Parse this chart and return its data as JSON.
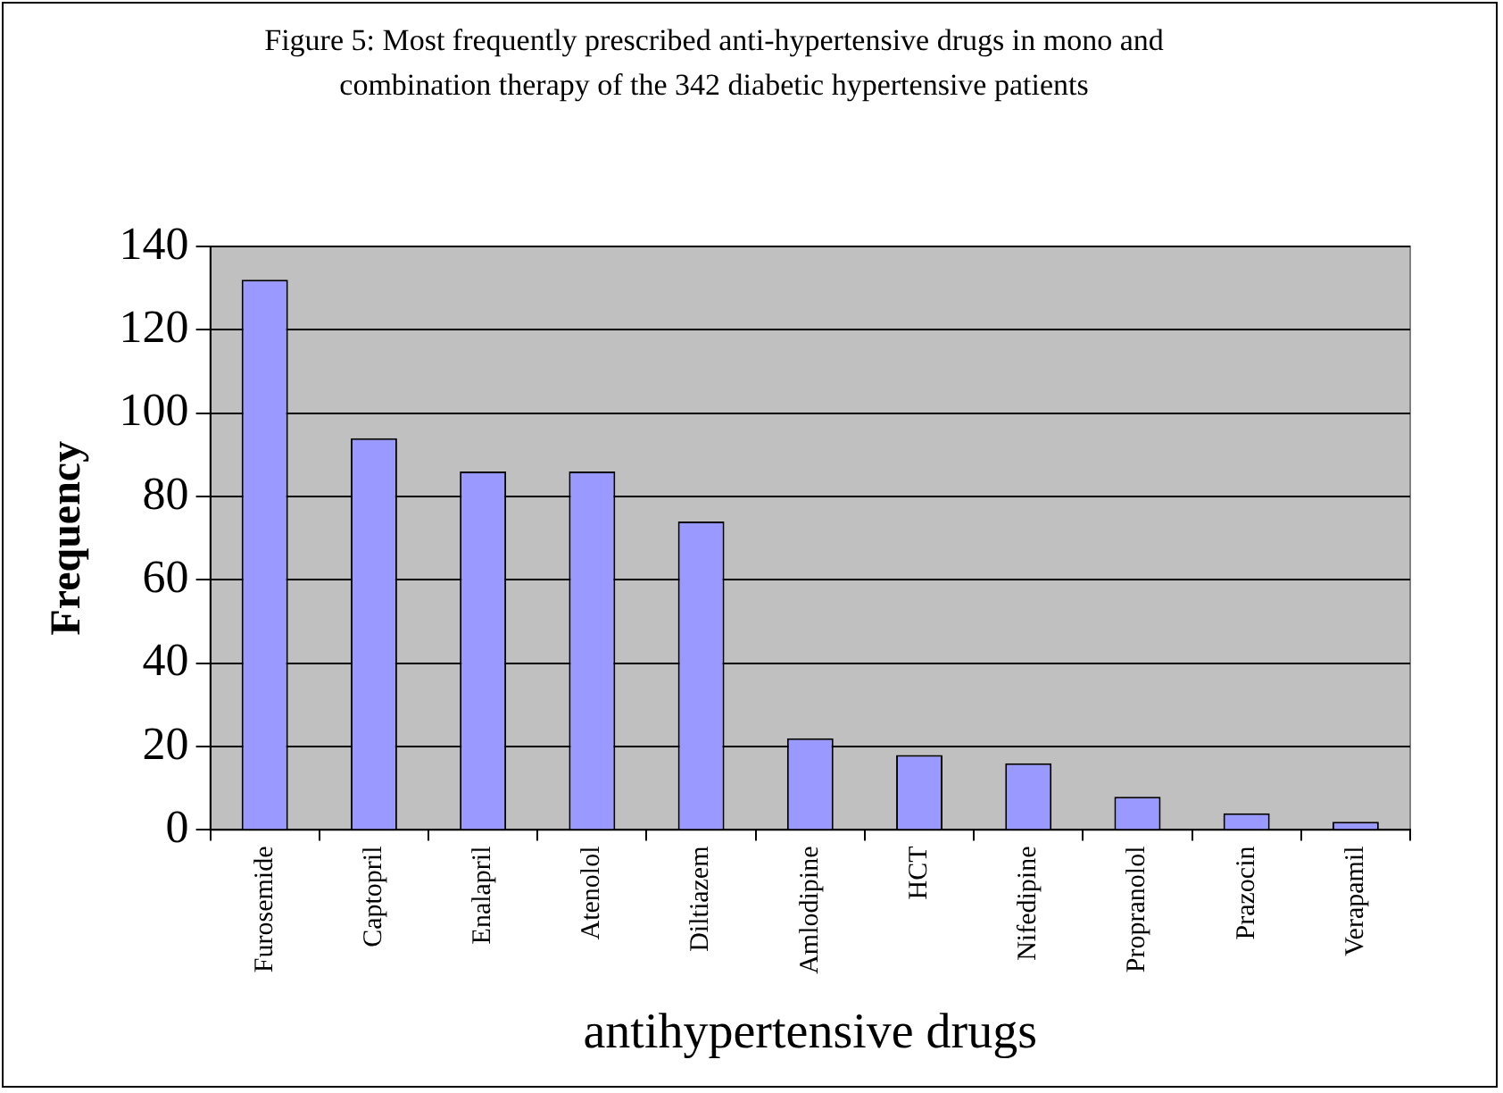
{
  "chart_data": {
    "type": "bar",
    "title": "Figure 5: Most frequently prescribed anti-hypertensive drugs in mono and combination therapy of the 342 diabetic hypertensive patients",
    "xlabel": "antihypertensive drugs",
    "ylabel": "Frequency",
    "categories": [
      "Furosemide",
      "Captopril",
      "Enalapril",
      "Atenolol",
      "Diltiazem",
      "Amlodipine",
      "HCT",
      "Nifedipine",
      "Propranolol",
      "Prazocin",
      "Verapamil"
    ],
    "values": [
      132,
      94,
      86,
      86,
      74,
      22,
      18,
      16,
      8,
      4,
      2
    ],
    "color": "#9999ff",
    "ylim": [
      0,
      140
    ],
    "yticks": [
      0,
      20,
      40,
      60,
      80,
      100,
      120,
      140
    ],
    "grid": "y",
    "legend": false
  }
}
